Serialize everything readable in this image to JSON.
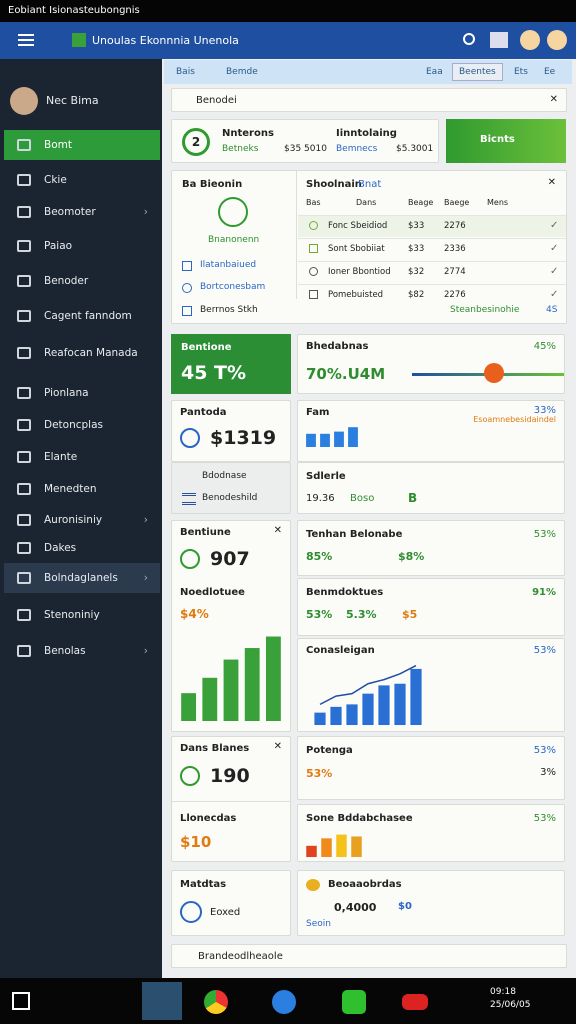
{
  "status_bar": {
    "title": "Eobiant Isionasteubongnis"
  },
  "header": {
    "title": "Unoulas Ekonnnia Unenola"
  },
  "sidebar": {
    "user": "Nec Bima",
    "items": [
      "Bomt",
      "Ckie",
      "Beomoter",
      "Paiao",
      "Benoder",
      "Cagent fanndom",
      "Reafocan Manada",
      "Pionlana",
      "Detoncplas",
      "Elante",
      "Menedten",
      "Auronisiniy",
      "Dakes",
      "Bolndaglanels",
      "Stenoniniy",
      "Benolas"
    ]
  },
  "breadcrumb": {
    "items": [
      "Bais",
      "Bemde"
    ],
    "tabs": [
      "Eaa",
      "Beentes",
      "Ets",
      "Ee"
    ]
  },
  "search": {
    "placeholder": "Benodei"
  },
  "summary": {
    "badge": "2",
    "col1": {
      "title": "Nnterons",
      "sub": "Betneks",
      "value": "$35 5010"
    },
    "col2": {
      "title": "Iinntolaing",
      "sub": "Bemnecs",
      "value": "$5.3001"
    },
    "button": "Bicnts"
  },
  "panel": {
    "left_title": "Ba Bieonin",
    "left_caption": "Bnanonenn",
    "check1": "Ilatanbaiued",
    "check2": "Bortconesbam",
    "footer": "Berrnos Stkh",
    "right_title": "Shoolnain",
    "right_link": "Bnat",
    "columns": [
      "Bas",
      "Dans",
      "Beage",
      "Baege",
      "Mens"
    ],
    "rows": [
      [
        "Fonc Sbeidiod",
        "$33",
        "2276"
      ],
      [
        "Sont Sbobiiat",
        "$33",
        "2336"
      ],
      [
        "Ioner Bbontiod",
        "$32",
        "2774"
      ],
      [
        "Pomebuisted",
        "$82",
        "2276"
      ]
    ],
    "link": "Steanbesinohie",
    "link2": "4S"
  },
  "cards": {
    "c1": {
      "title": "Bentione",
      "value": "45 T%"
    },
    "c2": {
      "title": "Pantoda",
      "value": "$1319"
    },
    "c3": {
      "line1": "Bdodnase",
      "line2": "Benodeshild"
    },
    "c4": {
      "title": "Bentiune",
      "value": "907",
      "sub": "Noedlotuee",
      "sub_value": "$4%"
    },
    "c5": {
      "title": "Dans Blanes",
      "value": "190",
      "sub": "Llonecdas",
      "sub_value": "$10"
    },
    "c6": {
      "title": "Matdtas",
      "value": "Eoxed"
    },
    "r1": {
      "title": "Bhedabnas",
      "pct": "45%",
      "value": "70%.U4M"
    },
    "r2": {
      "title": "Fam",
      "pct": "33%",
      "sub": "Esoamnebesidaindel"
    },
    "r3": {
      "title": "Sdlerle",
      "v1": "19.36",
      "v2": "Boso",
      "v3": "B"
    },
    "r4": {
      "title": "Tenhan Belonabe",
      "pct": "53%",
      "v1": "85%",
      "v2": "$8%"
    },
    "r5": {
      "title": "Benmdoktues",
      "v1": "53%",
      "v2": "5.3%",
      "v3": "91%",
      "v4": "$5"
    },
    "r6": {
      "title": "Conasleigan",
      "pct": "53%"
    },
    "r7": {
      "title": "Potenga",
      "pct": "53%",
      "v1": "53%",
      "v2": "3%"
    },
    "r8": {
      "title": "Sone Bddabchasee",
      "pct": "53%"
    },
    "r9": {
      "title": "Beoaaobrdas",
      "v1": "0,4000",
      "v2": "$0",
      "v3": "Seoin"
    }
  },
  "charts": {
    "green": {
      "ylim": [
        0,
        100
      ],
      "values": [
        29,
        45,
        64,
        76,
        88
      ],
      "color": "#3aa03a"
    },
    "blue": {
      "ylim": [
        0,
        80
      ],
      "values": [
        15,
        22,
        25,
        38,
        48,
        50,
        68
      ],
      "line": [
        25,
        35,
        38,
        50,
        55,
        62,
        72
      ],
      "color": "#2a6fd4"
    },
    "fam": {
      "ylim": [
        0,
        20
      ],
      "values": [
        12,
        12,
        14,
        18
      ],
      "color": "#2a7fe0"
    },
    "warm": {
      "ylim": [
        0,
        30
      ],
      "values": [
        12,
        20,
        24,
        22
      ],
      "colors": [
        "#e0441c",
        "#f08a1a",
        "#f5c21c",
        "#e8a020"
      ]
    }
  },
  "bottom_search": {
    "placeholder": "Brandeodlheaole"
  },
  "taskbar": {
    "time": "09:18",
    "date": "25/06/05"
  }
}
